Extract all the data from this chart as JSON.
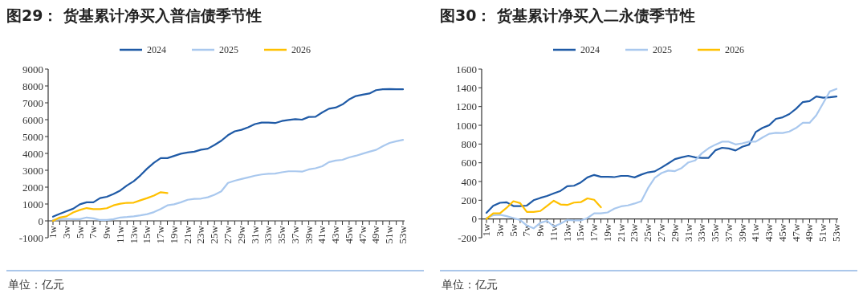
{
  "chart_data": [
    {
      "type": "line",
      "title": "图29：  货基累计净买入普信债季节性",
      "categories": [
        "1w",
        null,
        "3w",
        null,
        "5w",
        null,
        "7w",
        null,
        "9w",
        null,
        "11w",
        null,
        "13w",
        null,
        "15w",
        null,
        "17w",
        null,
        "19w",
        null,
        "21w",
        null,
        "23w",
        null,
        "25w",
        null,
        "27w",
        null,
        "29w",
        null,
        "31w",
        null,
        "33w",
        null,
        "35w",
        null,
        "37w",
        null,
        "39w",
        null,
        "41w",
        null,
        "43w",
        null,
        "45w",
        null,
        "47w",
        null,
        "49w",
        null,
        "51w",
        null,
        "53w"
      ],
      "series": [
        {
          "name": "2024",
          "color": "#1f5aa6",
          "values": [
            250,
            420,
            570,
            720,
            980,
            1100,
            1100,
            1350,
            1430,
            1600,
            1800,
            2100,
            2350,
            2700,
            3100,
            3450,
            3720,
            3720,
            3850,
            3980,
            4050,
            4100,
            4220,
            4280,
            4500,
            4750,
            5080,
            5310,
            5400,
            5550,
            5740,
            5830,
            5830,
            5800,
            5920,
            5980,
            6030,
            6000,
            6160,
            6170,
            6430,
            6650,
            6720,
            6900,
            7200,
            7400,
            7480,
            7550,
            7750,
            7800,
            7820,
            7800,
            7800
          ]
        },
        {
          "name": "2025",
          "color": "#a9c8ee",
          "values": [
            50,
            100,
            120,
            100,
            100,
            200,
            150,
            50,
            50,
            100,
            200,
            230,
            270,
            330,
            400,
            520,
            700,
            920,
            980,
            1100,
            1250,
            1300,
            1320,
            1400,
            1550,
            1750,
            2250,
            2380,
            2480,
            2580,
            2680,
            2750,
            2790,
            2800,
            2880,
            2940,
            2940,
            2920,
            3050,
            3120,
            3240,
            3480,
            3580,
            3620,
            3760,
            3860,
            3980,
            4100,
            4210,
            4430,
            4620,
            4720,
            4800
          ]
        },
        {
          "name": "2026",
          "color": "#ffc000",
          "values": [
            0,
            200,
            270,
            500,
            650,
            760,
            700,
            700,
            750,
            920,
            1020,
            1070,
            1080,
            1220,
            1350,
            1500,
            1700,
            1650,
            null,
            null,
            null,
            null,
            null,
            null,
            null,
            null,
            null,
            null,
            null,
            null,
            null,
            null,
            null,
            null,
            null,
            null,
            null,
            null,
            null,
            null,
            null,
            null,
            null,
            null,
            null,
            null,
            null,
            null,
            null,
            null,
            null,
            null,
            null
          ]
        }
      ],
      "ylim": [
        -1000,
        9000
      ],
      "yticks": [
        -1000,
        0,
        1000,
        2000,
        3000,
        4000,
        5000,
        6000,
        7000,
        8000,
        9000
      ],
      "legend": "top",
      "annotations": [
        "单位：亿元"
      ]
    },
    {
      "type": "line",
      "title": "图30：  货基累计净买入二永债季节性",
      "categories": [
        "1w",
        null,
        "3w",
        null,
        "5w",
        null,
        "7w",
        null,
        "9w",
        null,
        "11w",
        null,
        "13w",
        null,
        "15w",
        null,
        "17w",
        null,
        "19w",
        null,
        "21w",
        null,
        "23w",
        null,
        "25w",
        null,
        "27w",
        null,
        "29w",
        null,
        "31w",
        null,
        "33w",
        null,
        "35w",
        null,
        "37w",
        null,
        "39w",
        null,
        "41w",
        null,
        "43w",
        null,
        "45w",
        null,
        "47w",
        null,
        "49w",
        null,
        "51w",
        null,
        "53w"
      ],
      "series": [
        {
          "name": "2024",
          "color": "#1f5aa6",
          "values": [
            65,
            140,
            173,
            178,
            138,
            138,
            143,
            200,
            225,
            246,
            273,
            300,
            350,
            355,
            390,
            444,
            470,
            450,
            450,
            447,
            460,
            460,
            444,
            474,
            498,
            508,
            549,
            593,
            639,
            658,
            674,
            658,
            652,
            652,
            733,
            760,
            752,
            731,
            771,
            793,
            928,
            972,
            1001,
            1069,
            1085,
            1120,
            1177,
            1248,
            1258,
            1307,
            1294,
            1299,
            1307
          ]
        },
        {
          "name": "2025",
          "color": "#a9c8ee",
          "values": [
            10,
            40,
            45,
            30,
            10,
            -10,
            -70,
            -100,
            -40,
            -20,
            -80,
            -50,
            -10,
            -15,
            -15,
            10,
            60,
            60,
            70,
            110,
            135,
            145,
            165,
            190,
            330,
            440,
            490,
            517,
            511,
            544,
            604,
            625,
            701,
            755,
            793,
            825,
            825,
            796,
            807,
            825,
            825,
            869,
            909,
            920,
            917,
            934,
            972,
            1026,
            1026,
            1107,
            1234,
            1361,
            1388
          ]
        },
        {
          "name": "2026",
          "color": "#ffc000",
          "values": [
            0,
            60,
            60,
            120,
            190,
            170,
            75,
            75,
            85,
            140,
            195,
            155,
            150,
            175,
            180,
            220,
            205,
            125,
            null,
            null,
            null,
            null,
            null,
            null,
            null,
            null,
            null,
            null,
            null,
            null,
            null,
            null,
            null,
            null,
            null,
            null,
            null,
            null,
            null,
            null,
            null,
            null,
            null,
            null,
            null,
            null,
            null,
            null,
            null,
            null,
            null,
            null,
            null
          ]
        }
      ],
      "ylim": [
        -200,
        1600
      ],
      "yticks": [
        -200,
        0,
        200,
        400,
        600,
        800,
        1000,
        1200,
        1400,
        1600
      ],
      "legend": "top",
      "annotations": [
        "单位：亿元"
      ]
    }
  ]
}
